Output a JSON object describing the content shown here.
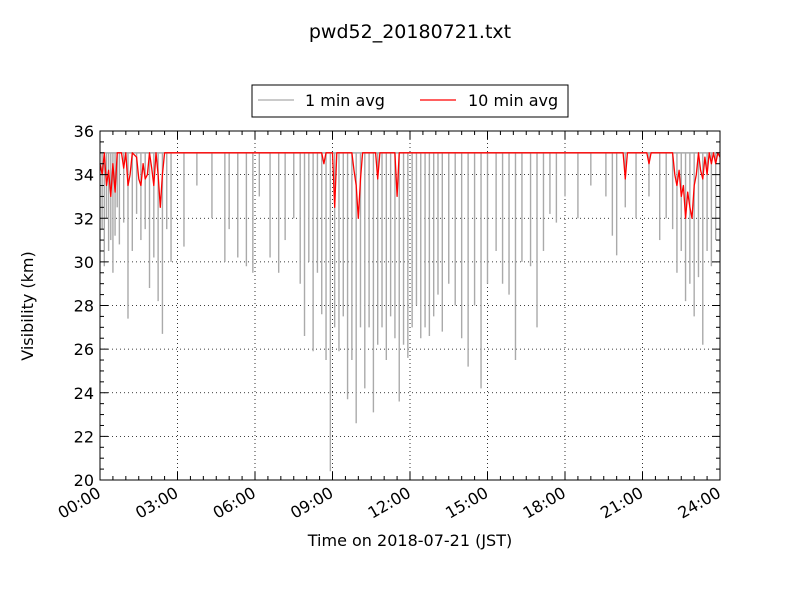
{
  "chart_data": {
    "type": "line",
    "title": "pwd52_20180721.txt",
    "xlabel": "Time on 2018-07-21 (JST)",
    "ylabel": "Visibility (km)",
    "xlim": [
      "00:00",
      "24:00"
    ],
    "ylim": [
      20,
      36
    ],
    "x_ticks": [
      "00:00",
      "03:00",
      "06:00",
      "09:00",
      "12:00",
      "15:00",
      "18:00",
      "21:00",
      "24:00"
    ],
    "y_ticks": [
      20,
      22,
      24,
      26,
      28,
      30,
      32,
      34,
      36
    ],
    "grid": true,
    "legend_position": "top-center",
    "series": [
      {
        "name": "1 min avg",
        "color": "#aaaaaa",
        "baseline": 35,
        "dips": [
          [
            "00:05",
            31.5
          ],
          [
            "00:10",
            29.8
          ],
          [
            "00:15",
            32.0
          ],
          [
            "00:20",
            30.5
          ],
          [
            "00:25",
            31.0
          ],
          [
            "00:30",
            29.5
          ],
          [
            "00:35",
            31.2
          ],
          [
            "00:40",
            32.5
          ],
          [
            "00:45",
            30.8
          ],
          [
            "00:55",
            31.8
          ],
          [
            "01:05",
            27.4
          ],
          [
            "01:15",
            30.5
          ],
          [
            "01:25",
            32.2
          ],
          [
            "01:35",
            31.0
          ],
          [
            "01:45",
            31.5
          ],
          [
            "01:55",
            28.8
          ],
          [
            "02:05",
            30.2
          ],
          [
            "02:15",
            28.2
          ],
          [
            "02:25",
            26.7
          ],
          [
            "02:35",
            31.5
          ],
          [
            "02:45",
            30.0
          ],
          [
            "03:15",
            30.7
          ],
          [
            "03:45",
            33.5
          ],
          [
            "04:20",
            32.0
          ],
          [
            "04:50",
            30.0
          ],
          [
            "05:00",
            31.5
          ],
          [
            "05:20",
            30.2
          ],
          [
            "05:40",
            29.8
          ],
          [
            "05:55",
            29.5
          ],
          [
            "06:10",
            33.0
          ],
          [
            "06:35",
            30.2
          ],
          [
            "06:55",
            29.5
          ],
          [
            "07:10",
            31.0
          ],
          [
            "07:30",
            32.0
          ],
          [
            "07:45",
            29.0
          ],
          [
            "07:55",
            26.6
          ],
          [
            "08:05",
            30.0
          ],
          [
            "08:15",
            25.9
          ],
          [
            "08:25",
            29.5
          ],
          [
            "08:35",
            27.6
          ],
          [
            "08:45",
            25.5
          ],
          [
            "08:55",
            20.4
          ],
          [
            "09:05",
            27.0
          ],
          [
            "09:15",
            25.9
          ],
          [
            "09:25",
            27.5
          ],
          [
            "09:35",
            23.7
          ],
          [
            "09:45",
            25.5
          ],
          [
            "09:55",
            22.6
          ],
          [
            "10:05",
            27.0
          ],
          [
            "10:15",
            24.2
          ],
          [
            "10:25",
            27.0
          ],
          [
            "10:35",
            23.1
          ],
          [
            "10:45",
            26.2
          ],
          [
            "10:55",
            27.0
          ],
          [
            "11:05",
            25.5
          ],
          [
            "11:15",
            27.5
          ],
          [
            "11:25",
            26.5
          ],
          [
            "11:35",
            23.6
          ],
          [
            "11:45",
            26.2
          ],
          [
            "11:55",
            25.6
          ],
          [
            "12:05",
            27.0
          ],
          [
            "12:15",
            28.0
          ],
          [
            "12:25",
            26.5
          ],
          [
            "12:35",
            27.0
          ],
          [
            "12:45",
            26.6
          ],
          [
            "12:55",
            27.5
          ],
          [
            "13:05",
            28.5
          ],
          [
            "13:15",
            26.8
          ],
          [
            "13:30",
            29.0
          ],
          [
            "13:45",
            28.0
          ],
          [
            "14:00",
            26.5
          ],
          [
            "14:15",
            25.2
          ],
          [
            "14:30",
            28.0
          ],
          [
            "14:45",
            24.2
          ],
          [
            "15:00",
            29.0
          ],
          [
            "15:20",
            30.5
          ],
          [
            "15:35",
            29.0
          ],
          [
            "15:50",
            28.5
          ],
          [
            "16:05",
            25.5
          ],
          [
            "16:20",
            30.0
          ],
          [
            "16:40",
            29.8
          ],
          [
            "16:55",
            27.0
          ],
          [
            "17:10",
            30.5
          ],
          [
            "17:25",
            32.2
          ],
          [
            "17:40",
            31.8
          ],
          [
            "18:00",
            33.0
          ],
          [
            "18:30",
            32.0
          ],
          [
            "19:00",
            33.5
          ],
          [
            "19:35",
            33.0
          ],
          [
            "19:50",
            31.2
          ],
          [
            "20:00",
            30.3
          ],
          [
            "20:20",
            32.5
          ],
          [
            "20:45",
            32.0
          ],
          [
            "21:15",
            33.0
          ],
          [
            "21:40",
            31.0
          ],
          [
            "21:55",
            32.0
          ],
          [
            "22:10",
            31.5
          ],
          [
            "22:20",
            29.5
          ],
          [
            "22:30",
            30.5
          ],
          [
            "22:40",
            28.2
          ],
          [
            "22:50",
            29.0
          ],
          [
            "23:00",
            27.5
          ],
          [
            "23:10",
            29.3
          ],
          [
            "23:20",
            26.2
          ],
          [
            "23:30",
            30.5
          ],
          [
            "23:40",
            29.8
          ],
          [
            "23:50",
            31.0
          ]
        ]
      },
      {
        "name": "10 min avg",
        "color": "#ff0000",
        "points": [
          [
            "00:00",
            34.5
          ],
          [
            "00:05",
            34.0
          ],
          [
            "00:10",
            35.0
          ],
          [
            "00:15",
            33.5
          ],
          [
            "00:20",
            34.2
          ],
          [
            "00:25",
            33.0
          ],
          [
            "00:30",
            34.5
          ],
          [
            "00:35",
            33.2
          ],
          [
            "00:40",
            35.0
          ],
          [
            "00:50",
            35.0
          ],
          [
            "00:55",
            34.3
          ],
          [
            "01:00",
            35.0
          ],
          [
            "01:05",
            33.5
          ],
          [
            "01:10",
            34.0
          ],
          [
            "01:15",
            35.0
          ],
          [
            "01:25",
            34.8
          ],
          [
            "01:30",
            33.8
          ],
          [
            "01:35",
            33.5
          ],
          [
            "01:40",
            34.5
          ],
          [
            "01:45",
            33.8
          ],
          [
            "01:50",
            34.0
          ],
          [
            "01:55",
            35.0
          ],
          [
            "02:00",
            34.3
          ],
          [
            "02:05",
            33.5
          ],
          [
            "02:10",
            35.0
          ],
          [
            "02:15",
            34.0
          ],
          [
            "02:20",
            32.5
          ],
          [
            "02:25",
            34.0
          ],
          [
            "02:30",
            35.0
          ],
          [
            "08:35",
            35.0
          ],
          [
            "08:40",
            34.5
          ],
          [
            "08:45",
            35.0
          ],
          [
            "09:00",
            35.0
          ],
          [
            "09:05",
            32.5
          ],
          [
            "09:10",
            35.0
          ],
          [
            "09:45",
            35.0
          ],
          [
            "09:50",
            34.2
          ],
          [
            "09:55",
            33.5
          ],
          [
            "10:00",
            32.0
          ],
          [
            "10:05",
            33.8
          ],
          [
            "10:10",
            35.0
          ],
          [
            "10:40",
            35.0
          ],
          [
            "10:45",
            33.8
          ],
          [
            "10:50",
            35.0
          ],
          [
            "11:25",
            35.0
          ],
          [
            "11:30",
            33.0
          ],
          [
            "11:35",
            35.0
          ],
          [
            "20:15",
            35.0
          ],
          [
            "20:20",
            33.8
          ],
          [
            "20:25",
            35.0
          ],
          [
            "21:10",
            35.0
          ],
          [
            "21:15",
            34.5
          ],
          [
            "21:20",
            35.0
          ],
          [
            "22:10",
            35.0
          ],
          [
            "22:15",
            34.0
          ],
          [
            "22:20",
            33.5
          ],
          [
            "22:25",
            34.2
          ],
          [
            "22:30",
            33.0
          ],
          [
            "22:35",
            33.5
          ],
          [
            "22:40",
            32.0
          ],
          [
            "22:45",
            33.2
          ],
          [
            "22:50",
            32.5
          ],
          [
            "22:55",
            32.0
          ],
          [
            "23:00",
            33.5
          ],
          [
            "23:05",
            34.0
          ],
          [
            "23:10",
            35.0
          ],
          [
            "23:15",
            34.2
          ],
          [
            "23:20",
            33.8
          ],
          [
            "23:25",
            34.8
          ],
          [
            "23:30",
            34.0
          ],
          [
            "23:35",
            35.0
          ],
          [
            "23:40",
            34.5
          ],
          [
            "23:45",
            35.0
          ],
          [
            "23:50",
            34.5
          ],
          [
            "23:55",
            35.0
          ],
          [
            "24:00",
            34.8
          ]
        ]
      }
    ]
  }
}
